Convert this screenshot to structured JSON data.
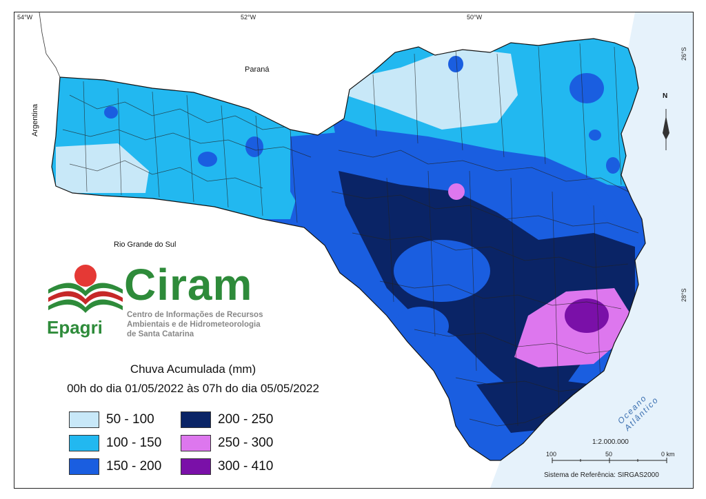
{
  "map": {
    "ticks": {
      "top": [
        "54°W",
        "52°W",
        "50°W"
      ],
      "right": [
        "26°S",
        "28°S"
      ]
    },
    "labels": {
      "parana": "Paraná",
      "argentina": "Argentina",
      "rio_grande": "Rio Grande do Sul",
      "ocean": "Oceano Atlântico"
    },
    "north_arrow": "N",
    "scale": {
      "ratio": "1:2.000.000",
      "marks": [
        "100",
        "50",
        "0 km"
      ]
    },
    "reference": "Sistema de Referência: SIRGAS2000"
  },
  "logo": {
    "name": "Ciram",
    "org": "Epagri",
    "subtitle_lines": [
      "Centro de Informações de Recursos",
      "Ambientais e de Hidrometeorologia",
      "de Santa Catarina"
    ]
  },
  "legend": {
    "title": "Chuva Acumulada (mm)",
    "period": "00h do dia 01/05/2022 às 07h do dia 05/05/2022",
    "classes": [
      {
        "label": "50 - 100",
        "color": "#c8e8f8"
      },
      {
        "label": "100 - 150",
        "color": "#22b8f0"
      },
      {
        "label": "150 - 200",
        "color": "#1a5ee0"
      },
      {
        "label": "200 - 250",
        "color": "#0a2466"
      },
      {
        "label": "250 - 300",
        "color": "#dd77ee"
      },
      {
        "label": "300 - 410",
        "color": "#7a10a8"
      }
    ]
  }
}
